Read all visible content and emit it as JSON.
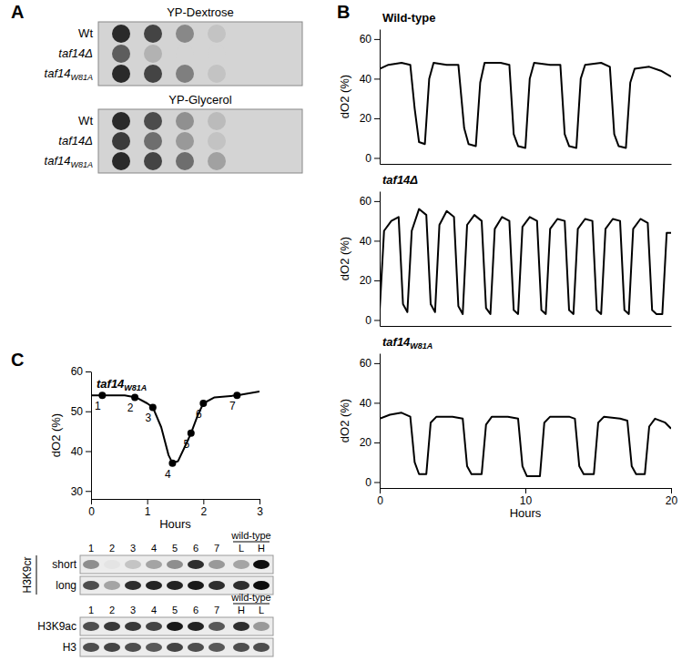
{
  "figure": {
    "panel_labels": [
      "A",
      "B",
      "C"
    ]
  },
  "panel_a": {
    "plates": [
      {
        "title": "YP-Dextrose",
        "rows": [
          {
            "label": "Wt",
            "growth": [
              1.0,
              0.85,
              0.45,
              0.1
            ]
          },
          {
            "label": "taf14Δ",
            "growth": [
              0.7,
              0.2,
              0.0,
              0.0
            ]
          },
          {
            "label": "taf14",
            "label_subscript": "W81A",
            "growth": [
              1.0,
              0.85,
              0.5,
              0.1
            ]
          }
        ]
      },
      {
        "title": "YP-Glycerol",
        "rows": [
          {
            "label": "Wt",
            "growth": [
              1.0,
              0.8,
              0.4,
              0.15
            ]
          },
          {
            "label": "taf14Δ",
            "growth": [
              0.9,
              0.6,
              0.35,
              0.1
            ]
          },
          {
            "label": "taf14",
            "label_subscript": "W81A",
            "growth": [
              1.0,
              0.85,
              0.6,
              0.3
            ]
          }
        ]
      }
    ]
  },
  "chart_data": [
    {
      "type": "line",
      "title": "Wild-type",
      "ylabel": "dO2 (%)",
      "color": "#000000",
      "xlim": [
        0,
        20
      ],
      "ylim": [
        -3,
        65
      ],
      "yticks": [
        0,
        20,
        40,
        60
      ],
      "tick_labels": "y",
      "x": [
        0,
        0.6,
        1.5,
        2.1,
        2.4,
        2.7,
        3.1,
        3.4,
        3.7,
        4.6,
        5.4,
        5.8,
        6.1,
        6.6,
        6.9,
        7.2,
        8.3,
        8.9,
        9.2,
        9.5,
        10.0,
        10.3,
        10.6,
        11.7,
        12.4,
        12.7,
        13.0,
        13.5,
        13.8,
        14.1,
        15.2,
        15.8,
        16.1,
        16.4,
        16.9,
        17.2,
        17.5,
        18.5,
        19.3,
        20
      ],
      "values": [
        45,
        47,
        48,
        47,
        25,
        8,
        7,
        40,
        48,
        47,
        47,
        15,
        7,
        6,
        38,
        48,
        48,
        47,
        12,
        6,
        5,
        40,
        48,
        47,
        47,
        12,
        6,
        5,
        40,
        47,
        48,
        46,
        12,
        6,
        5,
        38,
        45,
        46,
        44,
        41
      ]
    },
    {
      "type": "line",
      "title": "taf14Δ",
      "ylabel": "dO2 (%)",
      "color": "#000000",
      "xlim": [
        0,
        20
      ],
      "ylim": [
        -3,
        65
      ],
      "yticks": [
        0,
        20,
        40,
        60
      ],
      "tick_labels": "y",
      "x": [
        0,
        0.3,
        0.8,
        1.3,
        1.6,
        1.9,
        2.2,
        2.7,
        3.2,
        3.5,
        3.8,
        4.1,
        4.6,
        5.1,
        5.4,
        5.7,
        6.0,
        6.5,
        7.0,
        7.3,
        7.6,
        7.9,
        8.4,
        8.9,
        9.2,
        9.5,
        9.8,
        10.3,
        10.8,
        11.1,
        11.4,
        11.7,
        12.2,
        12.7,
        13.0,
        13.3,
        13.6,
        14.1,
        14.6,
        14.9,
        15.2,
        15.5,
        16.0,
        16.5,
        16.8,
        17.1,
        17.4,
        17.9,
        18.4,
        18.7,
        19.0,
        19.4,
        19.7,
        20
      ],
      "values": [
        5,
        45,
        50,
        52,
        8,
        4,
        45,
        56,
        53,
        8,
        4,
        48,
        55,
        52,
        7,
        3,
        48,
        53,
        50,
        6,
        3,
        46,
        52,
        50,
        5,
        3,
        47,
        52,
        50,
        5,
        3,
        46,
        51,
        50,
        5,
        3,
        46,
        51,
        50,
        5,
        3,
        46,
        51,
        50,
        5,
        3,
        46,
        51,
        49,
        5,
        3,
        3,
        44,
        44
      ]
    },
    {
      "type": "line",
      "title": "taf14",
      "title_subscript": "W81A",
      "ylabel": "dO2 (%)",
      "xlabel": "Hours",
      "color": "#000000",
      "xlim": [
        0,
        20
      ],
      "ylim": [
        -3,
        65
      ],
      "xticks": [
        0,
        10,
        20
      ],
      "yticks": [
        0,
        20,
        40,
        60
      ],
      "x": [
        0,
        0.7,
        1.5,
        2.1,
        2.4,
        2.7,
        3.2,
        3.5,
        3.9,
        5.0,
        5.7,
        6.0,
        6.3,
        7.0,
        7.3,
        7.7,
        8.8,
        9.5,
        9.8,
        10.1,
        11.0,
        11.3,
        11.7,
        13.0,
        13.4,
        13.7,
        14.0,
        14.7,
        15.0,
        15.4,
        16.5,
        17.0,
        17.3,
        17.6,
        18.2,
        18.5,
        18.9,
        19.6,
        20
      ],
      "values": [
        32,
        34,
        35,
        33,
        10,
        4,
        4,
        30,
        33,
        33,
        32,
        8,
        4,
        4,
        29,
        33,
        33,
        32,
        8,
        3,
        3,
        30,
        33,
        33,
        32,
        8,
        4,
        4,
        30,
        33,
        32,
        31,
        8,
        4,
        4,
        28,
        32,
        30,
        27
      ]
    },
    {
      "type": "line",
      "title": "taf14",
      "title_subscript": "W81A",
      "ylabel": "dO2 (%)",
      "xlabel": "Hours",
      "color": "#000000",
      "xlim": [
        0,
        3
      ],
      "ylim": [
        28,
        60
      ],
      "xticks": [
        0,
        1,
        2,
        3
      ],
      "yticks": [
        30,
        40,
        50,
        60
      ],
      "x": [
        0,
        0.3,
        0.6,
        0.8,
        1.0,
        1.1,
        1.25,
        1.38,
        1.45,
        1.55,
        1.7,
        1.78,
        1.9,
        2.0,
        2.2,
        2.6,
        3
      ],
      "values": [
        54,
        54,
        54,
        53.5,
        52,
        51,
        46,
        39,
        37,
        37.5,
        42,
        44.5,
        49,
        52,
        53.5,
        54,
        55
      ],
      "points": {
        "marker": "circle",
        "x": [
          0.2,
          0.78,
          1.1,
          1.45,
          1.78,
          2.0,
          2.6
        ],
        "values": [
          54,
          53.5,
          51,
          37,
          44.5,
          52,
          54
        ],
        "labels": [
          "1",
          "2",
          "3",
          "4",
          "5",
          "6",
          "7"
        ]
      }
    }
  ],
  "panel_c_blots": {
    "groups": [
      {
        "group_label": "H3K9cr",
        "wild_type_label": "wild-type",
        "lanes": [
          "1",
          "2",
          "3",
          "4",
          "5",
          "6",
          "7",
          "L",
          "H"
        ],
        "blots": [
          {
            "label": "short",
            "bands": [
              0.4,
              0.0,
              0.15,
              0.3,
              0.4,
              0.85,
              0.35,
              0.3,
              1.0
            ]
          },
          {
            "label": "long",
            "bands": [
              0.7,
              0.3,
              0.85,
              0.9,
              0.9,
              0.95,
              0.85,
              0.85,
              1.0
            ]
          }
        ]
      },
      {
        "wild_type_label": "wild-type",
        "lanes": [
          "1",
          "2",
          "3",
          "4",
          "5",
          "6",
          "7",
          "H",
          "L"
        ],
        "blots": [
          {
            "label": "H3K9ac",
            "bands": [
              0.7,
              0.8,
              0.8,
              0.75,
              0.95,
              0.9,
              0.65,
              0.85,
              0.35
            ]
          },
          {
            "label": "H3",
            "bands": [
              0.7,
              0.75,
              0.7,
              0.65,
              0.75,
              0.7,
              0.65,
              0.7,
              0.7
            ]
          }
        ]
      }
    ]
  }
}
